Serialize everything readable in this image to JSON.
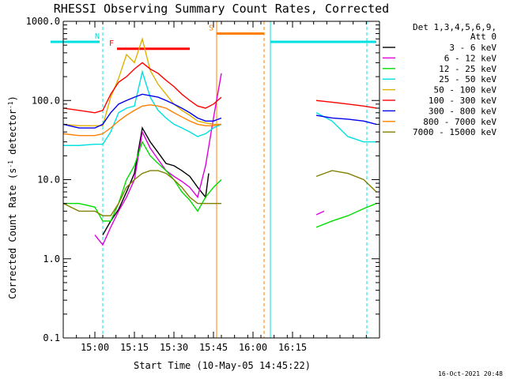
{
  "chart_data": {
    "type": "line",
    "title": "RHESSI Observing Summary Count Rates, Corrected",
    "xlabel": "Start Time (10-May-05 14:45:22)",
    "ylabel_main": "Corrected Count Rate (s",
    "ylabel_sup1": "-1",
    "ylabel_mid": " detector",
    "ylabel_sup2": "-1",
    "ylabel_end": ")",
    "y_scale": "log",
    "ylim": [
      0.1,
      1000
    ],
    "xlim_minutes": [
      -6,
      32
    ],
    "xlim_clock": [
      "14:48",
      "16:28"
    ],
    "x_ticks": [
      {
        "label": "15:00",
        "t": 15.0
      },
      {
        "label": "15:15",
        "t": 15.25
      },
      {
        "label": "15:30",
        "t": 15.5
      },
      {
        "label": "15:45",
        "t": 15.75
      },
      {
        "label": "16:00",
        "t": 16.0
      },
      {
        "label": "16:15",
        "t": 16.25
      }
    ],
    "y_ticks": [
      {
        "label": "1000.0",
        "v": 1000
      },
      {
        "label": "100.0",
        "v": 100
      },
      {
        "label": "10.0",
        "v": 10
      },
      {
        "label": "1.0",
        "v": 1
      },
      {
        "label": "0.1",
        "v": 0.1
      }
    ],
    "legend_header": [
      "Det 1,3,4,5,6,9,",
      "Att 0"
    ],
    "series": [
      {
        "name": "3 - 6 keV",
        "color": "#000000",
        "x": [
          15.05,
          15.1,
          15.15,
          15.2,
          15.25,
          15.3,
          15.35,
          15.4,
          15.45,
          15.5,
          15.55,
          15.6,
          15.65,
          15.7,
          15.72
        ],
        "y": [
          2.0,
          3.0,
          4.2,
          7.0,
          12.0,
          45.0,
          30.0,
          22.0,
          16.0,
          15.0,
          13.0,
          11.0,
          8.0,
          6.0,
          12.0
        ]
      },
      {
        "name": "6 - 12 keV",
        "color": "#dd00dd",
        "x": [
          15.0,
          15.05,
          15.1,
          15.15,
          15.2,
          15.25,
          15.3,
          15.35,
          15.4,
          15.45,
          15.5,
          15.55,
          15.6,
          15.65,
          15.7,
          15.75,
          15.8,
          16.4,
          16.45
        ],
        "y": [
          2.0,
          1.5,
          2.5,
          4.0,
          6.0,
          10.0,
          40.0,
          25.0,
          18.0,
          13.0,
          11.0,
          9.5,
          8.0,
          6.0,
          15.0,
          60.0,
          220.0,
          3.6,
          4.0
        ]
      },
      {
        "name": "12 - 25 keV",
        "color": "#00dd00",
        "x": [
          14.8,
          14.9,
          15.0,
          15.05,
          15.1,
          15.15,
          15.2,
          15.25,
          15.3,
          15.35,
          15.4,
          15.45,
          15.5,
          15.55,
          15.6,
          15.65,
          15.7,
          15.75,
          15.8,
          16.4,
          16.5,
          16.6,
          16.7,
          16.78
        ],
        "y": [
          5.0,
          5.0,
          4.5,
          3.0,
          3.0,
          5.0,
          10.0,
          15.0,
          30.0,
          20.0,
          16.0,
          13.0,
          10.0,
          7.0,
          5.5,
          4.0,
          6.0,
          8.0,
          10.0,
          2.5,
          3.0,
          3.5,
          4.3,
          5.0
        ]
      },
      {
        "name": "25 - 50 keV",
        "color": "#00e0e0",
        "x": [
          14.8,
          14.9,
          15.0,
          15.05,
          15.1,
          15.15,
          15.2,
          15.25,
          15.3,
          15.35,
          15.4,
          15.45,
          15.5,
          15.55,
          15.6,
          15.65,
          15.7,
          15.75,
          15.8,
          16.4,
          16.5,
          16.6,
          16.7,
          16.78
        ],
        "y": [
          27.0,
          27.0,
          28.0,
          28.0,
          40.0,
          70.0,
          80.0,
          85.0,
          230.0,
          110.0,
          75.0,
          60.0,
          50.0,
          45.0,
          40.0,
          35.0,
          38.0,
          45.0,
          50.0,
          70.0,
          55.0,
          35.0,
          30.0,
          30.0
        ]
      },
      {
        "name": "50 - 100 keV",
        "color": "#e0b000",
        "x": [
          14.8,
          14.9,
          15.0,
          15.05,
          15.1,
          15.15,
          15.2,
          15.25,
          15.3,
          15.35,
          15.4,
          15.45,
          15.5,
          15.55,
          15.6,
          15.65,
          15.7,
          15.75,
          15.8
        ],
        "y": [
          50.0,
          48.0,
          48.0,
          48.0,
          110.0,
          190.0,
          380.0,
          300.0,
          600.0,
          240.0,
          160.0,
          120.0,
          90.0,
          75.0,
          65.0,
          55.0,
          52.0,
          50.0,
          50.0
        ]
      },
      {
        "name": "100 - 300 keV",
        "color": "#ff0000",
        "x": [
          14.8,
          14.9,
          15.0,
          15.05,
          15.1,
          15.15,
          15.2,
          15.25,
          15.3,
          15.35,
          15.4,
          15.45,
          15.5,
          15.55,
          15.6,
          15.65,
          15.7,
          15.75,
          15.8,
          16.4,
          16.5,
          16.6,
          16.7,
          16.78
        ],
        "y": [
          80.0,
          75.0,
          70.0,
          75.0,
          120.0,
          170.0,
          200.0,
          250.0,
          300.0,
          250.0,
          220.0,
          180.0,
          150.0,
          120.0,
          100.0,
          85.0,
          80.0,
          90.0,
          110.0,
          100.0,
          95.0,
          90.0,
          85.0,
          80.0
        ]
      },
      {
        "name": "300 - 800 keV",
        "color": "#0000ee",
        "x": [
          14.8,
          14.9,
          15.0,
          15.05,
          15.1,
          15.15,
          15.2,
          15.25,
          15.3,
          15.35,
          15.4,
          15.45,
          15.5,
          15.55,
          15.6,
          15.65,
          15.7,
          15.75,
          15.8,
          16.4,
          16.5,
          16.6,
          16.7,
          16.78
        ],
        "y": [
          50.0,
          45.0,
          45.0,
          50.0,
          70.0,
          90.0,
          100.0,
          110.0,
          120.0,
          115.0,
          110.0,
          100.0,
          90.0,
          80.0,
          70.0,
          60.0,
          55.0,
          55.0,
          60.0,
          65.0,
          60.0,
          58.0,
          55.0,
          50.0
        ]
      },
      {
        "name": "800 - 7000 keV",
        "color": "#ff8000",
        "x": [
          14.8,
          14.9,
          15.0,
          15.05,
          15.1,
          15.15,
          15.2,
          15.25,
          15.3,
          15.35,
          15.4,
          15.45,
          15.5,
          15.55,
          15.6,
          15.65,
          15.7,
          15.75,
          15.8
        ],
        "y": [
          38.0,
          36.0,
          36.0,
          38.0,
          45.0,
          55.0,
          65.0,
          75.0,
          85.0,
          88.0,
          85.0,
          80.0,
          70.0,
          62.0,
          55.0,
          50.0,
          48.0,
          48.0,
          50.0
        ]
      },
      {
        "name": "7000 - 15000 keV",
        "color": "#808000",
        "x": [
          14.8,
          14.9,
          15.0,
          15.05,
          15.1,
          15.15,
          15.2,
          15.25,
          15.3,
          15.35,
          15.4,
          15.45,
          15.5,
          15.55,
          15.6,
          15.65,
          15.7,
          15.75,
          15.8,
          16.4,
          16.5,
          16.6,
          16.7,
          16.78
        ],
        "y": [
          5.0,
          4.0,
          4.0,
          3.5,
          3.5,
          5.0,
          8.0,
          10.0,
          12.0,
          13.0,
          13.0,
          12.0,
          10.0,
          8.0,
          6.0,
          5.0,
          5.0,
          5.0,
          5.0,
          11.0,
          13.0,
          12.0,
          10.0,
          7.0
        ]
      }
    ],
    "flags": [
      {
        "label": "N",
        "color": "#00e0e0",
        "y": 550,
        "segments": [
          [
            14.72,
            15.03
          ],
          [
            16.11,
            16.78
          ]
        ]
      },
      {
        "label": "F",
        "color": "#ff0000",
        "y": 450,
        "segments": [
          [
            15.14,
            15.6
          ]
        ]
      },
      {
        "label": "S",
        "color": "#ff8000",
        "y": 700,
        "segments": [
          [
            15.77,
            16.07
          ]
        ]
      }
    ],
    "markers": [
      {
        "color": "#00e0e0",
        "t": 15.05,
        "style": "dashed"
      },
      {
        "color": "#00e0e0",
        "t": 16.11,
        "style": "solid"
      },
      {
        "color": "#00e0e0",
        "t": 16.72,
        "style": "dashed"
      },
      {
        "color": "#ff8000",
        "t": 15.77,
        "style": "solid"
      },
      {
        "color": "#ff8000",
        "t": 16.07,
        "style": "dashed"
      }
    ],
    "timestamp": "16-Oct-2021 20:48"
  }
}
